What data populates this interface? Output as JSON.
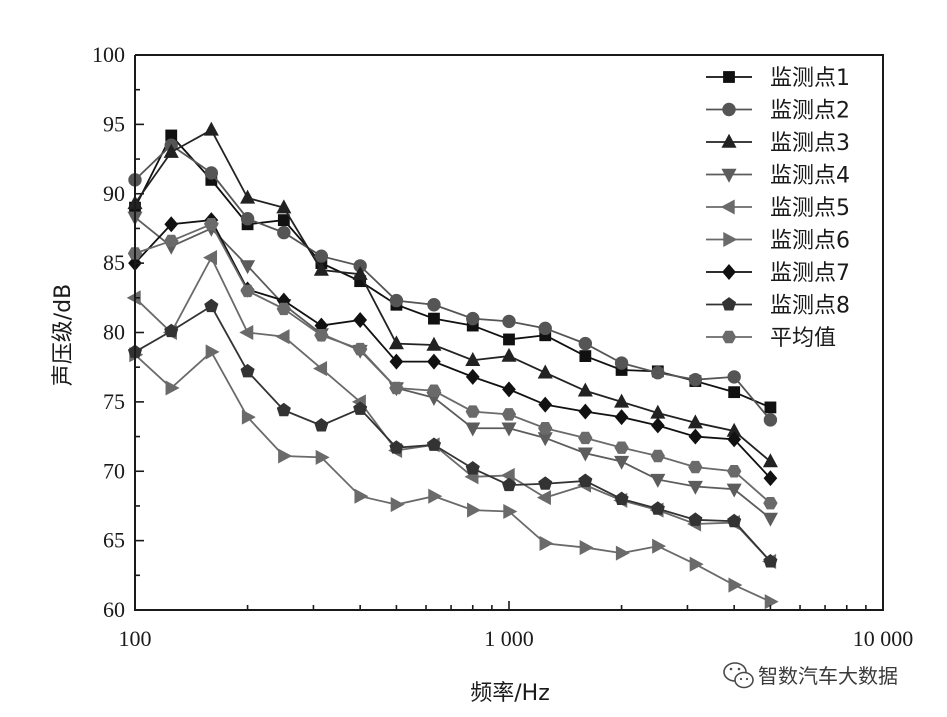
{
  "chart_data": {
    "type": "line",
    "title": "",
    "xlabel": "频率/Hz",
    "ylabel": "声压级/dB",
    "xscale": "log",
    "xlim": [
      100,
      10000
    ],
    "ylim": [
      60,
      100
    ],
    "x_ticks": [
      100,
      1000,
      10000
    ],
    "x_tick_labels": [
      "100",
      "1 000",
      "10 000"
    ],
    "y_ticks": [
      60,
      65,
      70,
      75,
      80,
      85,
      90,
      95,
      100
    ],
    "y_tick_labels": [
      "60",
      "65",
      "70",
      "75",
      "80",
      "85",
      "90",
      "95",
      "100"
    ],
    "legend_position": "top-right",
    "x": [
      100,
      125,
      160,
      200,
      250,
      315,
      400,
      500,
      630,
      800,
      1000,
      1250,
      1600,
      2000,
      2500,
      3150,
      4000,
      5000
    ],
    "series": [
      {
        "name": "监测点1",
        "marker": "square",
        "color": "#111111",
        "values": [
          89.0,
          94.2,
          91.0,
          87.8,
          88.1,
          85.0,
          83.7,
          82.0,
          81.0,
          80.5,
          79.5,
          79.8,
          78.3,
          77.3,
          77.2,
          76.5,
          75.7,
          74.6
        ]
      },
      {
        "name": "监测点2",
        "marker": "circle",
        "color": "#555555",
        "values": [
          91.0,
          93.5,
          91.5,
          88.2,
          87.2,
          85.5,
          84.8,
          82.3,
          82.0,
          81.0,
          80.8,
          80.3,
          79.2,
          77.8,
          77.1,
          76.6,
          76.8,
          73.7
        ]
      },
      {
        "name": "监测点3",
        "marker": "triangle-up",
        "color": "#222222",
        "values": [
          89.3,
          93.0,
          94.6,
          89.7,
          89.0,
          84.5,
          84.2,
          79.2,
          79.1,
          78.0,
          78.3,
          77.1,
          75.8,
          75.0,
          74.2,
          73.5,
          72.9,
          70.7
        ]
      },
      {
        "name": "监测点4",
        "marker": "triangle-down",
        "color": "#5c5c5c",
        "values": [
          88.3,
          86.2,
          87.5,
          84.8,
          82.0,
          79.9,
          78.7,
          76.0,
          75.3,
          73.1,
          73.1,
          72.4,
          71.3,
          70.7,
          69.4,
          68.9,
          68.7,
          66.6
        ]
      },
      {
        "name": "监测点5",
        "marker": "triangle-left",
        "color": "#6a6a6a",
        "values": [
          82.5,
          80.0,
          85.4,
          80.0,
          79.7,
          77.4,
          75.0,
          71.5,
          71.9,
          69.6,
          69.7,
          68.1,
          69.0,
          67.9,
          67.2,
          66.2,
          66.3,
          63.5
        ]
      },
      {
        "name": "监测点6",
        "marker": "triangle-right",
        "color": "#6a6a6a",
        "values": [
          78.4,
          76.0,
          78.6,
          73.9,
          71.1,
          71.0,
          68.2,
          67.6,
          68.2,
          67.2,
          67.1,
          64.8,
          64.5,
          64.1,
          64.6,
          63.3,
          61.8,
          60.6
        ]
      },
      {
        "name": "监测点7",
        "marker": "diamond",
        "color": "#111111",
        "values": [
          85.0,
          87.8,
          88.1,
          83.1,
          82.3,
          80.5,
          80.9,
          77.9,
          77.9,
          76.8,
          75.9,
          74.8,
          74.3,
          73.9,
          73.3,
          72.5,
          72.3,
          69.5
        ]
      },
      {
        "name": "监测点8",
        "marker": "pentagon",
        "color": "#333333",
        "values": [
          78.6,
          80.1,
          81.9,
          77.2,
          74.4,
          73.3,
          74.5,
          71.7,
          71.9,
          70.2,
          69.0,
          69.1,
          69.3,
          68.0,
          67.3,
          66.5,
          66.4,
          63.5
        ]
      },
      {
        "name": "平均值",
        "marker": "hexagon",
        "color": "#6a6a6a",
        "values": [
          85.7,
          86.6,
          87.8,
          83.0,
          81.7,
          79.8,
          78.8,
          76.0,
          75.8,
          74.3,
          74.1,
          73.1,
          72.4,
          71.7,
          71.1,
          70.3,
          70.0,
          67.7
        ]
      }
    ]
  },
  "watermark": {
    "text": "智数汽车大数据",
    "icon": "wechat-icon"
  }
}
